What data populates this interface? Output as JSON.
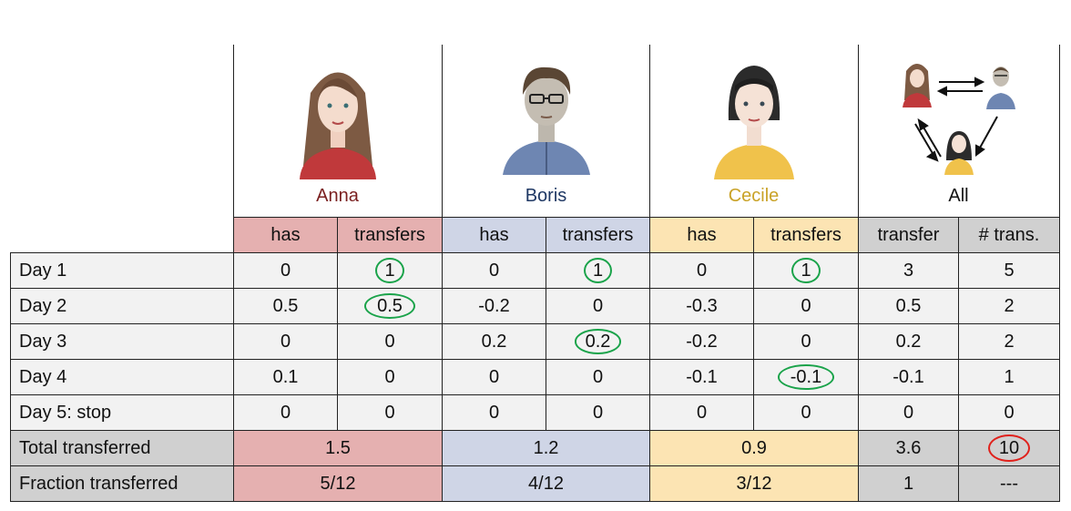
{
  "people": [
    {
      "name": "Anna",
      "color": "#7a1f1f",
      "band": "#e5b0b0"
    },
    {
      "name": "Boris",
      "color": "#1f3864",
      "band": "#cfd5e6"
    },
    {
      "name": "Cecile",
      "color": "#c9a227",
      "band": "#fce4b3"
    },
    {
      "name": "All",
      "color": "#111111",
      "band": "#d0d0d0"
    }
  ],
  "subheaders": [
    "has",
    "transfers",
    "has",
    "transfers",
    "has",
    "transfers",
    "transfer",
    "# trans."
  ],
  "rows": [
    {
      "label": "Day 1",
      "cells": [
        "0",
        "1",
        "0",
        "1",
        "0",
        "1",
        "3",
        "5"
      ]
    },
    {
      "label": "Day 2",
      "cells": [
        "0.5",
        "0.5",
        "-0.2",
        "0",
        "-0.3",
        "0",
        "0.5",
        "2"
      ]
    },
    {
      "label": "Day 3",
      "cells": [
        "0",
        "0",
        "0.2",
        "0.2",
        "-0.2",
        "0",
        "0.2",
        "2"
      ]
    },
    {
      "label": "Day 4",
      "cells": [
        "0.1",
        "0",
        "0",
        "0",
        "-0.1",
        "-0.1",
        "-0.1",
        "1"
      ]
    },
    {
      "label": "Day 5:  stop",
      "cells": [
        "0",
        "0",
        "0",
        "0",
        "0",
        "0",
        "0",
        "0"
      ]
    }
  ],
  "totals": {
    "label": "Total transferred",
    "anna": "1.5",
    "boris": "1.2",
    "cecile": "0.9",
    "all_transfer": "3.6",
    "all_count": "10"
  },
  "fractions": {
    "label": "Fraction transferred",
    "anna": "5/12",
    "boris": "4/12",
    "cecile": "3/12",
    "all_transfer": "1",
    "all_count": "---"
  }
}
